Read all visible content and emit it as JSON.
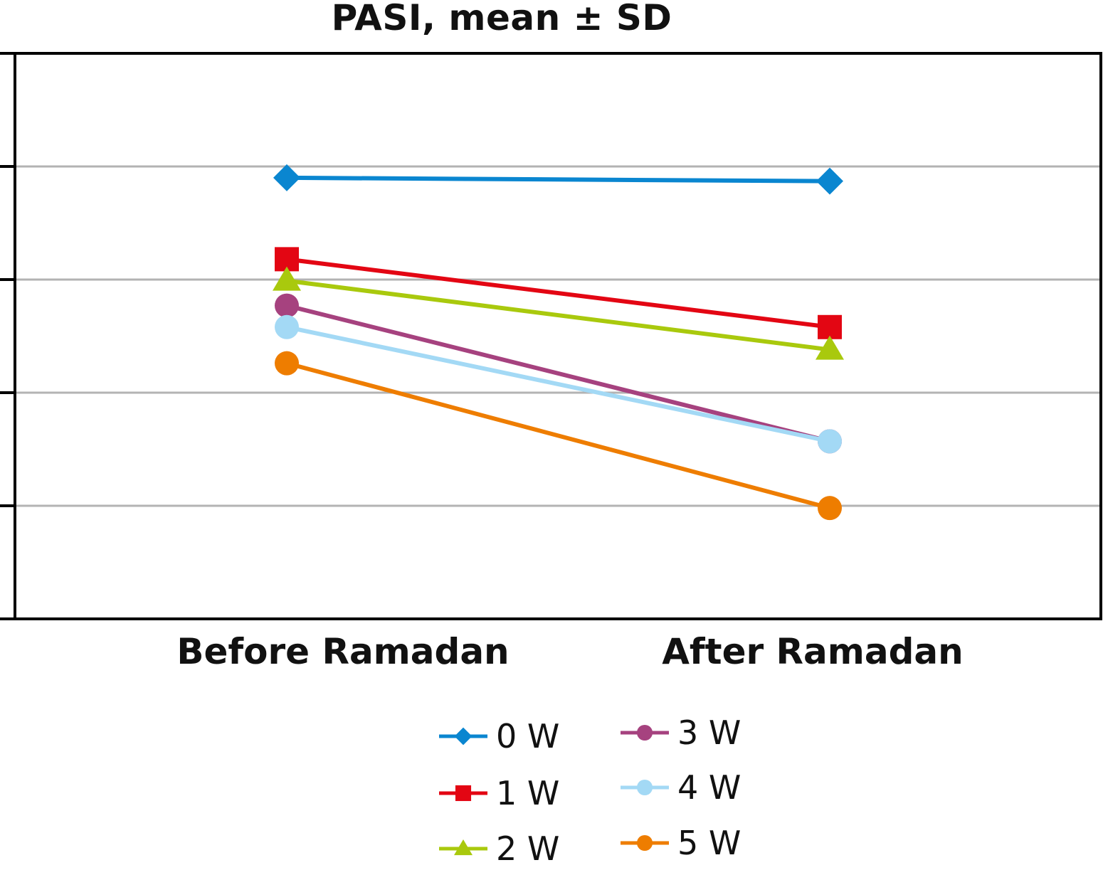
{
  "chart_data": {
    "type": "line",
    "title": "PASI, mean ± SD",
    "xlabel": "",
    "ylabel": "",
    "categories": [
      "Before Ramadan",
      "After Ramadan"
    ],
    "ylim": [
      0,
      5
    ],
    "yticks": [
      0,
      1,
      2,
      3,
      4,
      5
    ],
    "ytick_labels_visible": false,
    "grid": true,
    "legend_position": "bottom",
    "series": [
      {
        "name": "0 W",
        "color": "#0a86d0",
        "marker": "diamond",
        "values": [
          3.9,
          3.87
        ]
      },
      {
        "name": "1 W",
        "color": "#e30613",
        "marker": "square",
        "values": [
          3.18,
          2.58
        ]
      },
      {
        "name": "2 W",
        "color": "#a9c90d",
        "marker": "triangle",
        "values": [
          2.99,
          2.38
        ]
      },
      {
        "name": "3 W",
        "color": "#a6427f",
        "marker": "circle",
        "values": [
          2.77,
          1.57
        ]
      },
      {
        "name": "4 W",
        "color": "#a3d9f5",
        "marker": "circle",
        "values": [
          2.58,
          1.57
        ]
      },
      {
        "name": "5 W",
        "color": "#ee7d00",
        "marker": "circle",
        "values": [
          2.26,
          0.98
        ]
      }
    ]
  }
}
